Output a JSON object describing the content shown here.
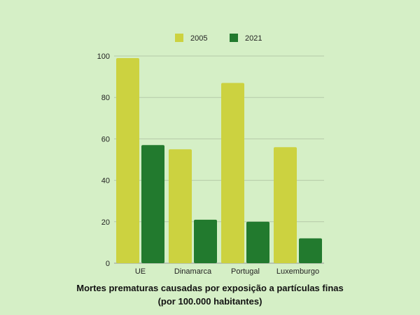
{
  "chart_data": {
    "type": "bar",
    "categories": [
      "UE",
      "Dinamarca",
      "Portugal",
      "Luxemburgo"
    ],
    "series": [
      {
        "name": "2005",
        "values": [
          99,
          55,
          87,
          56
        ],
        "color": "#ccd240"
      },
      {
        "name": "2021",
        "values": [
          57,
          21,
          20,
          12
        ],
        "color": "#227a2e"
      }
    ],
    "ylim": [
      0,
      100
    ],
    "yticks": [
      0,
      20,
      40,
      60,
      80,
      100
    ],
    "grid": true,
    "legend_position": "top",
    "title": "Mortes prematuras causadas por exposição a partículas finas",
    "subtitle": "(por 100.000 habitantes)"
  }
}
